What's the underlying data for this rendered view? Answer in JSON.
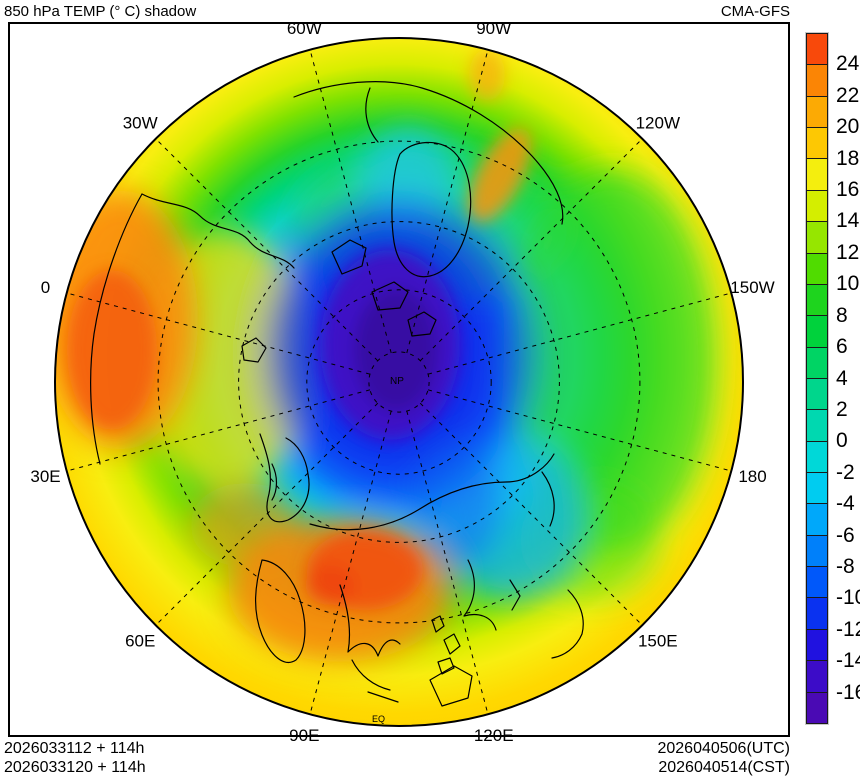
{
  "header": {
    "title": "850 hPa TEMP (° C) shadow",
    "model": "CMA-GFS"
  },
  "colorbar": {
    "units": "°C",
    "ticks": [
      "24",
      "22",
      "20",
      "18",
      "16",
      "14",
      "12",
      "10",
      "8",
      "6",
      "4",
      "2",
      "0",
      "-2",
      "-4",
      "-6",
      "-8",
      "-10",
      "-12",
      "-14",
      "-16"
    ],
    "segments": [
      "#f8490b",
      "#fb8505",
      "#fcaa04",
      "#fdc803",
      "#f4ee0e",
      "#d4ee00",
      "#96e600",
      "#50dc00",
      "#1ed41e",
      "#00d23c",
      "#00d464",
      "#00d68c",
      "#00d8b0",
      "#00d8d8",
      "#00ccf0",
      "#00a8fa",
      "#0080fa",
      "#0058fa",
      "#0a32f0",
      "#2012e0",
      "#3c0cc8",
      "#4a0ab4"
    ]
  },
  "map": {
    "pole_label": "NP",
    "equator_label": "EQ",
    "latitude_rings_deg": [
      80,
      60,
      40,
      20
    ],
    "top_meridian_deg": -75,
    "meridians": [
      {
        "label": "0",
        "deg": 0
      },
      {
        "label": "30E",
        "deg": 30
      },
      {
        "label": "60E",
        "deg": 60
      },
      {
        "label": "90E",
        "deg": 90
      },
      {
        "label": "120E",
        "deg": 120
      },
      {
        "label": "150E",
        "deg": 150
      },
      {
        "label": "180",
        "deg": 180
      },
      {
        "label": "150W",
        "deg": -150
      },
      {
        "label": "120W",
        "deg": -120
      },
      {
        "label": "90W",
        "deg": -90
      },
      {
        "label": "60W",
        "deg": -60
      },
      {
        "label": "30W",
        "deg": -30
      }
    ]
  },
  "footer": {
    "left": [
      "2026033112 + 114h",
      "2026033120 + 114h"
    ],
    "right": [
      "2026040506(UTC)",
      "2026040514(CST)"
    ]
  },
  "chart_data": {
    "type": "heatmap",
    "subtype": "north_polar_stereographic_filled_contours",
    "title": "850 hPa TEMP (° C) shadow",
    "model": "CMA-GFS",
    "variable": "temperature at 850 hPa",
    "units": "°C",
    "levels": [
      -16,
      -14,
      -12,
      -10,
      -8,
      -6,
      -4,
      -2,
      0,
      2,
      4,
      6,
      8,
      10,
      12,
      14,
      16,
      18,
      20,
      22,
      24
    ],
    "palette_low_to_high": [
      "#4a0ab4",
      "#3c0cc8",
      "#2012e0",
      "#0a32f0",
      "#0058fa",
      "#0080fa",
      "#00a8fa",
      "#00ccf0",
      "#00d8d8",
      "#00d8b0",
      "#00d68c",
      "#00d464",
      "#00d23c",
      "#1ed41e",
      "#50dc00",
      "#96e600",
      "#d4ee00",
      "#f4ee0e",
      "#fdc803",
      "#fcaa04",
      "#fb8505",
      "#f8490b"
    ],
    "projection": {
      "type": "north_polar_stereographic",
      "outer_boundary": "equator (EQ)",
      "pole_label": "NP",
      "top_meridian": "75W",
      "bottom_meridian": "105E",
      "meridian_spacing_deg": 30,
      "latitude_ring_spacing_deg": 20,
      "grid_style": "dashed"
    },
    "init_runs": [
      "2026033112 + 114h",
      "2026033120 + 114h"
    ],
    "valid_times": [
      "2026040506(UTC)",
      "2026040514(CST)"
    ],
    "field_summary": [
      {
        "region": "polar vortex core near/around North Pole (Arctic basin, Canadian Arctic)",
        "approx_temp_c": "-12 to below -16"
      },
      {
        "region": "broad Arctic ring (Greenland area, north Canada, East Siberian coast)",
        "approx_temp_c": "-4 to -12"
      },
      {
        "region": "mid-latitude ring (North America, North Atlantic, North Pacific, Siberia)",
        "approx_temp_c": "0 to 14"
      },
      {
        "region": "outer subtropical ring toward the equator boundary",
        "approx_temp_c": "16 to 22"
      },
      {
        "region": "North Africa / Sahara (left of map)",
        "approx_temp_c": "22 to above 24"
      },
      {
        "region": "South Asia / Indochina / southern China (bottom of map)",
        "approx_temp_c": "22 to above 24"
      }
    ]
  }
}
